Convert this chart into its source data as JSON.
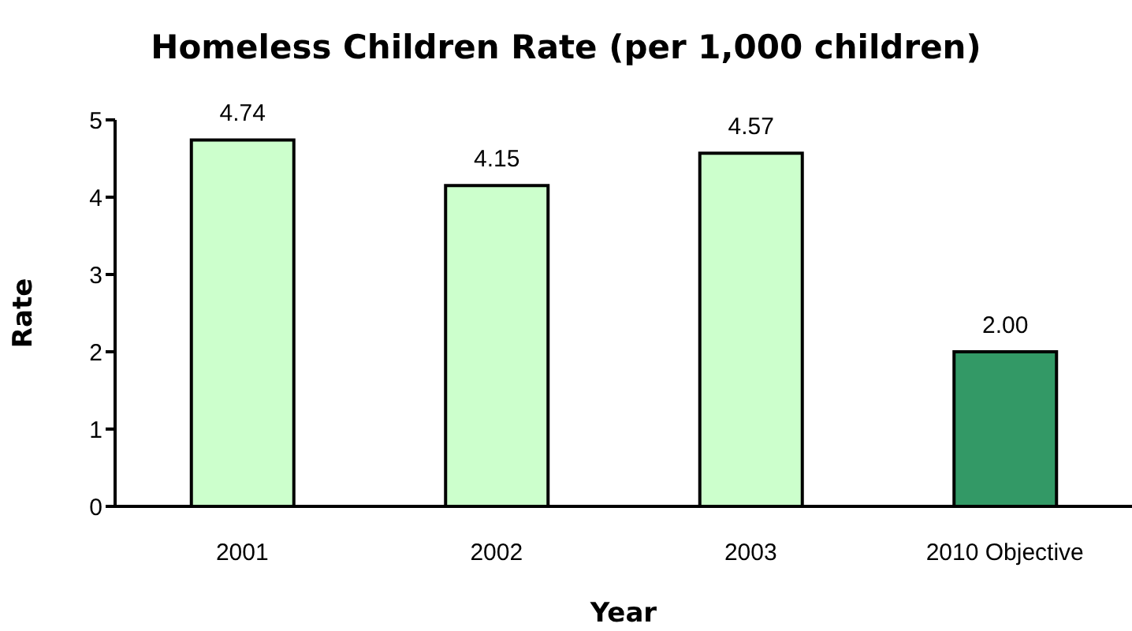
{
  "chart_data": {
    "type": "bar",
    "title": "Homeless Children Rate (per 1,000 children)",
    "xlabel": "Year",
    "ylabel": "Rate",
    "categories": [
      "2001",
      "2002",
      "2003",
      "2010 Objective"
    ],
    "values": [
      4.74,
      4.15,
      4.57,
      2.0
    ],
    "value_labels": [
      "4.74",
      "4.15",
      "4.57",
      "2.00"
    ],
    "colors": [
      "#ccffcc",
      "#ccffcc",
      "#ccffcc",
      "#339966"
    ],
    "ylim": [
      0,
      5
    ],
    "yticks": [
      0,
      1,
      2,
      3,
      4,
      5
    ]
  }
}
